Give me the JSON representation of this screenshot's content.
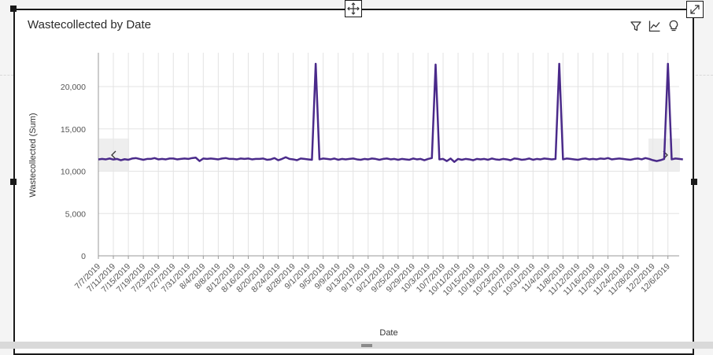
{
  "icons": {
    "move": "move-arrows-icon",
    "expand": "expand-icon",
    "filter": "filter-icon",
    "trend": "trend-line-icon",
    "insight": "lightbulb-icon",
    "prev": "chevron-left-icon",
    "next": "chevron-right-icon"
  },
  "colors": {
    "line": "#4a2a8a",
    "grid": "#e3e3e3",
    "axis": "#999999",
    "text": "#555555"
  },
  "chart_data": {
    "type": "line",
    "title": "Wastecollected by Date",
    "xlabel": "Date",
    "ylabel": "Wastecollected (Sum)",
    "ylim": [
      0,
      24000
    ],
    "yticks": [
      0,
      5000,
      10000,
      15000,
      20000
    ],
    "ytick_labels": [
      "0",
      "5,000",
      "10,000",
      "15,000",
      "20,000"
    ],
    "grid": true,
    "legend": "none",
    "x_start": "7/7/2019",
    "x_end": "12/9/2019",
    "xtick_labels": [
      "7/7/2019",
      "7/11/2019",
      "7/15/2019",
      "7/19/2019",
      "7/23/2019",
      "7/27/2019",
      "7/31/2019",
      "8/4/2019",
      "8/8/2019",
      "8/12/2019",
      "8/16/2019",
      "8/20/2019",
      "8/24/2019",
      "8/28/2019",
      "9/1/2019",
      "9/5/2019",
      "9/9/2019",
      "9/13/2019",
      "9/17/2019",
      "9/21/2019",
      "9/25/2019",
      "9/29/2019",
      "10/3/2019",
      "10/7/2019",
      "10/11/2019",
      "10/15/2019",
      "10/19/2019",
      "10/23/2019",
      "10/27/2019",
      "10/31/2019",
      "11/4/2019",
      "11/8/2019",
      "11/12/2019",
      "11/16/2019",
      "11/20/2019",
      "11/24/2019",
      "11/28/2019",
      "12/2/2019",
      "12/6/2019"
    ],
    "series": [
      {
        "values": [
          11400,
          11450,
          11400,
          11500,
          11380,
          11450,
          11300,
          11420,
          11350,
          11500,
          11550,
          11450,
          11350,
          11450,
          11450,
          11550,
          11400,
          11450,
          11400,
          11500,
          11500,
          11400,
          11450,
          11500,
          11450,
          11550,
          11600,
          11200,
          11500,
          11450,
          11500,
          11450,
          11400,
          11500,
          11550,
          11450,
          11450,
          11400,
          11500,
          11450,
          11500,
          11400,
          11450,
          11450,
          11500,
          11350,
          11400,
          11550,
          11300,
          11450,
          11650,
          11450,
          11400,
          11300,
          11500,
          11450,
          11400,
          11350,
          22700,
          11400,
          11500,
          11450,
          11400,
          11500,
          11350,
          11450,
          11400,
          11450,
          11500,
          11400,
          11350,
          11450,
          11400,
          11500,
          11450,
          11350,
          11450,
          11500,
          11400,
          11450,
          11350,
          11450,
          11400,
          11350,
          11500,
          11400,
          11450,
          11300,
          11450,
          11550,
          22600,
          11400,
          11450,
          11200,
          11500,
          11100,
          11450,
          11350,
          11450,
          11400,
          11300,
          11450,
          11400,
          11450,
          11350,
          11500,
          11400,
          11350,
          11450,
          11400,
          11300,
          11500,
          11450,
          11350,
          11400,
          11500,
          11350,
          11450,
          11400,
          11500,
          11450,
          11400,
          11450,
          22700,
          11400,
          11500,
          11450,
          11400,
          11350,
          11450,
          11500,
          11400,
          11450,
          11400,
          11500,
          11450,
          11550,
          11400,
          11450,
          11500,
          11450,
          11400,
          11350,
          11450,
          11500,
          11400,
          11550,
          11450,
          11300,
          11200,
          11300,
          11450,
          22700,
          11400,
          11500,
          11450,
          11400
        ]
      }
    ]
  }
}
